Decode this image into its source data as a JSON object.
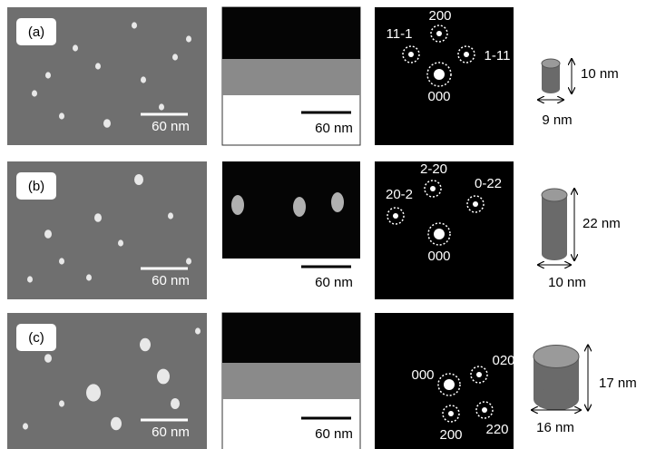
{
  "panels": [
    {
      "label": "(a)",
      "sem_scale": "60 nm",
      "cross_scale": "60 nm",
      "spots": [
        "200",
        "11-1",
        "1-11",
        "000"
      ],
      "height": "10 nm",
      "diameter": "9 nm"
    },
    {
      "label": "(b)",
      "sem_scale": "60 nm",
      "cross_scale": "60 nm",
      "spots": [
        "2-20",
        "0-22",
        "20-2",
        "000"
      ],
      "height": "22 nm",
      "diameter": "10 nm"
    },
    {
      "label": "(c)",
      "sem_scale": "60 nm",
      "cross_scale": "60 nm",
      "spots": [
        "000",
        "020",
        "200",
        "220"
      ],
      "height": "17 nm",
      "diameter": "16 nm"
    }
  ]
}
